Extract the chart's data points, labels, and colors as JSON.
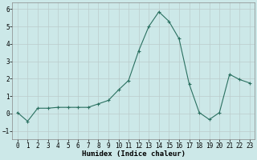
{
  "x": [
    0,
    1,
    2,
    3,
    4,
    5,
    6,
    7,
    8,
    9,
    10,
    11,
    12,
    13,
    14,
    15,
    16,
    17,
    18,
    19,
    20,
    21,
    22,
    23
  ],
  "y": [
    0.05,
    -0.45,
    0.3,
    0.3,
    0.35,
    0.35,
    0.35,
    0.35,
    0.55,
    0.75,
    1.35,
    1.9,
    3.6,
    5.0,
    5.85,
    5.3,
    4.3,
    1.7,
    0.05,
    -0.35,
    0.05,
    2.25,
    1.95,
    1.75
  ],
  "line_color": "#2a7060",
  "marker": "+",
  "markersize": 3.5,
  "linewidth": 0.8,
  "bg_color": "#cce8e8",
  "grid_color": "#bbcccc",
  "xlabel": "Humidex (Indice chaleur)",
  "xlabel_fontsize": 6.5,
  "tick_fontsize": 5.5,
  "ylim": [
    -1.5,
    6.4
  ],
  "yticks": [
    -1,
    0,
    1,
    2,
    3,
    4,
    5,
    6
  ],
  "xlim": [
    -0.5,
    23.5
  ],
  "xticks": [
    0,
    1,
    2,
    3,
    4,
    5,
    6,
    7,
    8,
    9,
    10,
    11,
    12,
    13,
    14,
    15,
    16,
    17,
    18,
    19,
    20,
    21,
    22,
    23
  ]
}
